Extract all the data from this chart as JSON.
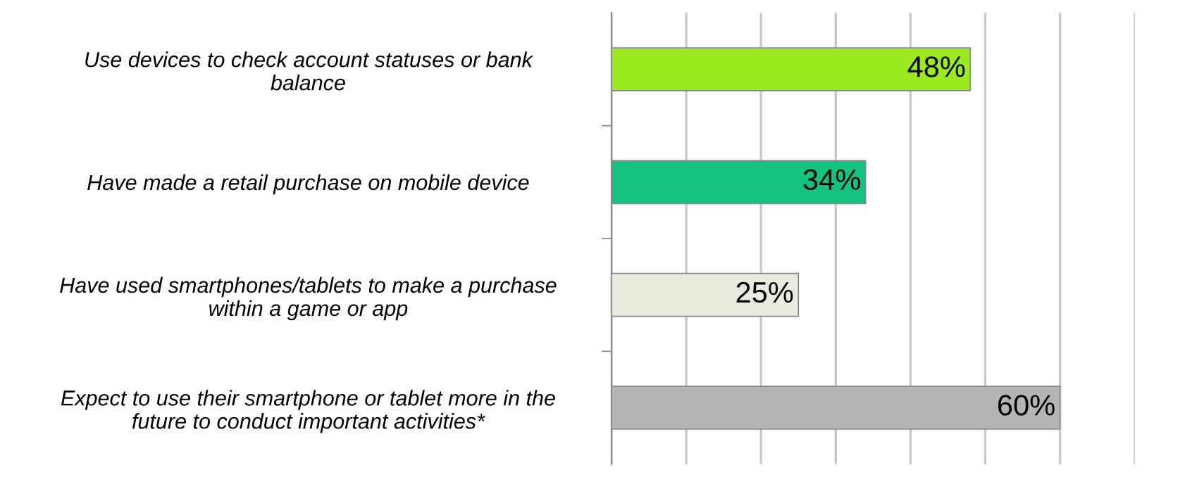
{
  "chart_data": {
    "type": "bar",
    "orientation": "horizontal",
    "categories": [
      "Use devices to check account statuses or bank\nbalance",
      "Have made a retail purchase on mobile device",
      "Have used smartphones/tablets to make a purchase\nwithin a game or app",
      "Expect to use their smartphone or tablet more in the\nfuture to conduct important activities*"
    ],
    "values": [
      48,
      34,
      25,
      60
    ],
    "colors": [
      "#9bea1e",
      "#12c27e",
      "#e8eadb",
      "#b4b4b4"
    ],
    "value_labels": [
      "48%",
      "34%",
      "25%",
      "60%"
    ],
    "xlim": [
      0,
      70
    ],
    "xticks": [
      {
        "value": 0,
        "label": null
      },
      {
        "value": 10,
        "label": null
      },
      {
        "value": 20,
        "label": null
      },
      {
        "value": 30,
        "label": null
      },
      {
        "value": 40,
        "label": null
      },
      {
        "value": 50,
        "label": null
      },
      {
        "value": 60,
        "label": null
      },
      {
        "value": 70,
        "label": null
      }
    ],
    "tick_labels": "y",
    "grid": "x"
  }
}
